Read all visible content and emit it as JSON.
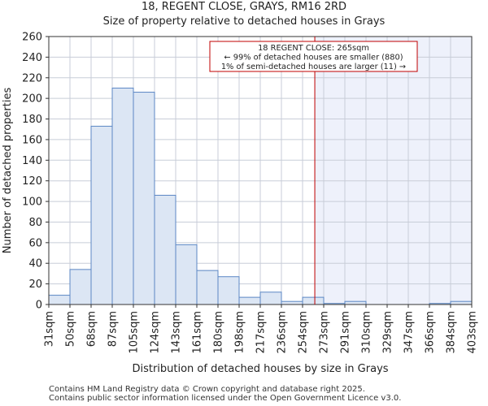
{
  "title_line1": "18, REGENT CLOSE, GRAYS, RM16 2RD",
  "title_line2": "Size of property relative to detached houses in Grays",
  "footer_line1": "Contains HM Land Registry data © Crown copyright and database right 2025.",
  "footer_line2": "Contains public sector information licensed under the Open Government Licence v3.0.",
  "chart_data": {
    "type": "bar",
    "xlabel": "Distribution of detached houses by size in Grays",
    "ylabel": "Number of detached properties",
    "ylim": [
      0,
      260
    ],
    "yticks": [
      0,
      20,
      40,
      60,
      80,
      100,
      120,
      140,
      160,
      180,
      200,
      220,
      240,
      260
    ],
    "bin_edges": [
      31,
      50,
      68,
      87,
      105,
      124,
      143,
      161,
      180,
      198,
      217,
      236,
      254,
      273,
      291,
      310,
      329,
      347,
      366,
      384,
      403
    ],
    "tick_labels": [
      "31sqm",
      "50sqm",
      "68sqm",
      "87sqm",
      "105sqm",
      "124sqm",
      "143sqm",
      "161sqm",
      "180sqm",
      "198sqm",
      "217sqm",
      "236sqm",
      "254sqm",
      "273sqm",
      "291sqm",
      "310sqm",
      "329sqm",
      "347sqm",
      "366sqm",
      "384sqm",
      "403sqm"
    ],
    "values": [
      9,
      34,
      173,
      210,
      206,
      106,
      58,
      33,
      27,
      7,
      12,
      3,
      7,
      1,
      3,
      0,
      0,
      0,
      1,
      3
    ],
    "grid": true,
    "bar_color": "#dce6f4",
    "bar_edge_color": "#5b87c4",
    "highlight_shade_color": "#eef1fb",
    "property_line": {
      "value": 265,
      "color": "#c00000",
      "annotation": [
        "18 REGENT CLOSE: 265sqm",
        "← 99% of detached houses are smaller (880)",
        "1% of semi-detached houses are larger (11) →"
      ]
    }
  }
}
